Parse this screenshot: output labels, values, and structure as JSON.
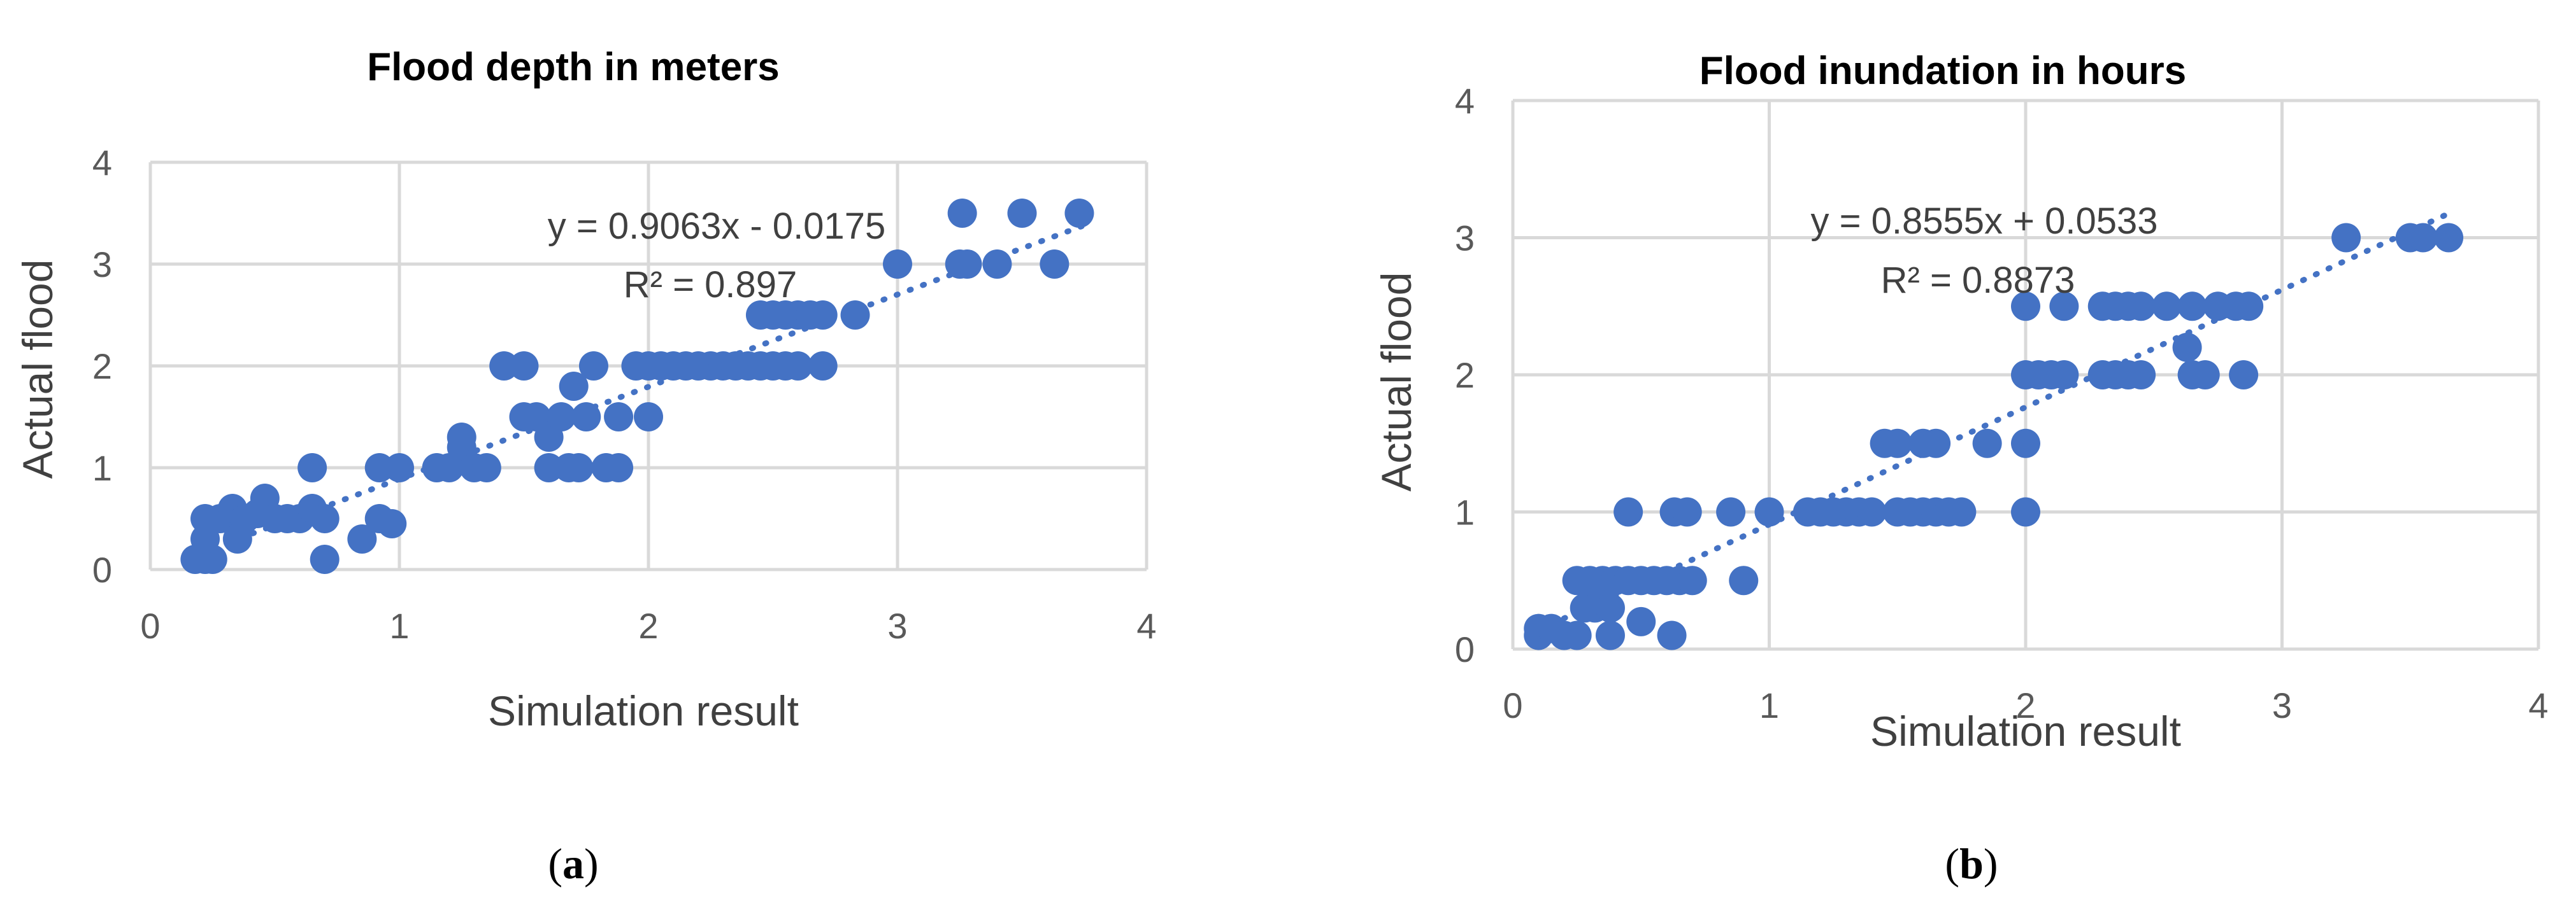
{
  "colors": {
    "marker": "#4472c4",
    "grid": "#d9d9d9",
    "axis_text": "#595959"
  },
  "chart_data": [
    {
      "type": "scatter",
      "title": "Flood depth in meters",
      "xlabel": "Simulation result",
      "ylabel": "Actual flood",
      "xlim": [
        0,
        4
      ],
      "ylim": [
        0,
        4
      ],
      "xticks": [
        "0",
        "1",
        "2",
        "3",
        "4"
      ],
      "yticks": [
        "0",
        "1",
        "2",
        "3",
        "4"
      ],
      "grid": true,
      "panel_label": "a",
      "trendline": {
        "equation": "y = 0.9063x - 0.0175",
        "r2": "R² = 0.897",
        "slope": 0.9063,
        "intercept": -0.0175,
        "x_range": [
          0.2,
          3.75
        ]
      },
      "points": [
        [
          0.18,
          0.1
        ],
        [
          0.22,
          0.1
        ],
        [
          0.25,
          0.1
        ],
        [
          0.22,
          0.3
        ],
        [
          0.22,
          0.5
        ],
        [
          0.28,
          0.5
        ],
        [
          0.33,
          0.6
        ],
        [
          0.35,
          0.3
        ],
        [
          0.38,
          0.5
        ],
        [
          0.43,
          0.55
        ],
        [
          0.46,
          0.7
        ],
        [
          0.5,
          0.5
        ],
        [
          0.55,
          0.5
        ],
        [
          0.6,
          0.5
        ],
        [
          0.65,
          0.6
        ],
        [
          0.65,
          1.0
        ],
        [
          0.7,
          0.1
        ],
        [
          0.7,
          0.5
        ],
        [
          0.85,
          0.3
        ],
        [
          0.92,
          0.5
        ],
        [
          0.92,
          1.0
        ],
        [
          0.97,
          0.45
        ],
        [
          1.0,
          1.0
        ],
        [
          1.15,
          1.0
        ],
        [
          1.2,
          1.0
        ],
        [
          1.25,
          1.2
        ],
        [
          1.25,
          1.3
        ],
        [
          1.3,
          1.0
        ],
        [
          1.35,
          1.0
        ],
        [
          1.42,
          2.0
        ],
        [
          1.5,
          2.0
        ],
        [
          1.5,
          1.5
        ],
        [
          1.55,
          1.5
        ],
        [
          1.6,
          1.0
        ],
        [
          1.6,
          1.3
        ],
        [
          1.65,
          1.5
        ],
        [
          1.68,
          1.0
        ],
        [
          1.7,
          1.8
        ],
        [
          1.72,
          1.0
        ],
        [
          1.75,
          1.5
        ],
        [
          1.78,
          2.0
        ],
        [
          1.83,
          1.0
        ],
        [
          1.88,
          1.5
        ],
        [
          1.88,
          1.0
        ],
        [
          1.95,
          2.0
        ],
        [
          2.0,
          1.5
        ],
        [
          2.0,
          2.0
        ],
        [
          2.05,
          2.0
        ],
        [
          2.1,
          2.0
        ],
        [
          2.15,
          2.0
        ],
        [
          2.2,
          2.0
        ],
        [
          2.25,
          2.0
        ],
        [
          2.3,
          2.0
        ],
        [
          2.35,
          2.0
        ],
        [
          2.4,
          2.0
        ],
        [
          2.45,
          2.0
        ],
        [
          2.5,
          2.0
        ],
        [
          2.55,
          2.0
        ],
        [
          2.6,
          2.0
        ],
        [
          2.7,
          2.0
        ],
        [
          2.45,
          2.5
        ],
        [
          2.5,
          2.5
        ],
        [
          2.55,
          2.5
        ],
        [
          2.6,
          2.5
        ],
        [
          2.65,
          2.5
        ],
        [
          2.7,
          2.5
        ],
        [
          2.83,
          2.5
        ],
        [
          3.0,
          3.0
        ],
        [
          3.25,
          3.0
        ],
        [
          3.28,
          3.0
        ],
        [
          3.4,
          3.0
        ],
        [
          3.63,
          3.0
        ],
        [
          3.26,
          3.5
        ],
        [
          3.5,
          3.5
        ],
        [
          3.73,
          3.5
        ]
      ]
    },
    {
      "type": "scatter",
      "title": "Flood inundation in hours",
      "xlabel": "Simulation result",
      "ylabel": "Actual flood",
      "xlim": [
        0,
        4
      ],
      "ylim": [
        0,
        4
      ],
      "xticks": [
        "0",
        "1",
        "2",
        "3",
        "4"
      ],
      "yticks": [
        "0",
        "1",
        "2",
        "3",
        "4"
      ],
      "grid": true,
      "panel_label": "b",
      "trendline": {
        "equation": "y = 0.8555x + 0.0533",
        "r2": "R² = 0.8873",
        "slope": 0.8555,
        "intercept": 0.0533,
        "x_range": [
          0.1,
          3.65
        ]
      },
      "points": [
        [
          0.1,
          0.1
        ],
        [
          0.1,
          0.15
        ],
        [
          0.15,
          0.15
        ],
        [
          0.2,
          0.1
        ],
        [
          0.25,
          0.1
        ],
        [
          0.28,
          0.3
        ],
        [
          0.32,
          0.3
        ],
        [
          0.35,
          0.35
        ],
        [
          0.38,
          0.3
        ],
        [
          0.38,
          0.1
        ],
        [
          0.25,
          0.5
        ],
        [
          0.3,
          0.5
        ],
        [
          0.35,
          0.5
        ],
        [
          0.4,
          0.5
        ],
        [
          0.45,
          0.5
        ],
        [
          0.5,
          0.5
        ],
        [
          0.55,
          0.5
        ],
        [
          0.6,
          0.5
        ],
        [
          0.65,
          0.5
        ],
        [
          0.7,
          0.5
        ],
        [
          0.9,
          0.5
        ],
        [
          0.5,
          0.2
        ],
        [
          0.62,
          0.1
        ],
        [
          0.45,
          1.0
        ],
        [
          0.63,
          1.0
        ],
        [
          0.68,
          1.0
        ],
        [
          0.85,
          1.0
        ],
        [
          1.0,
          1.0
        ],
        [
          1.15,
          1.0
        ],
        [
          1.2,
          1.0
        ],
        [
          1.25,
          1.0
        ],
        [
          1.3,
          1.0
        ],
        [
          1.35,
          1.0
        ],
        [
          1.4,
          1.0
        ],
        [
          1.5,
          1.0
        ],
        [
          1.55,
          1.0
        ],
        [
          1.6,
          1.0
        ],
        [
          1.65,
          1.0
        ],
        [
          1.7,
          1.0
        ],
        [
          1.75,
          1.0
        ],
        [
          2.0,
          1.0
        ],
        [
          1.45,
          1.5
        ],
        [
          1.5,
          1.5
        ],
        [
          1.6,
          1.5
        ],
        [
          1.65,
          1.5
        ],
        [
          1.85,
          1.5
        ],
        [
          2.0,
          1.5
        ],
        [
          2.0,
          2.0
        ],
        [
          2.05,
          2.0
        ],
        [
          2.1,
          2.0
        ],
        [
          2.15,
          2.0
        ],
        [
          2.3,
          2.0
        ],
        [
          2.35,
          2.0
        ],
        [
          2.4,
          2.0
        ],
        [
          2.45,
          2.0
        ],
        [
          2.63,
          2.2
        ],
        [
          2.65,
          2.0
        ],
        [
          2.7,
          2.0
        ],
        [
          2.85,
          2.0
        ],
        [
          2.0,
          2.5
        ],
        [
          2.15,
          2.5
        ],
        [
          2.3,
          2.5
        ],
        [
          2.35,
          2.5
        ],
        [
          2.4,
          2.5
        ],
        [
          2.45,
          2.5
        ],
        [
          2.55,
          2.5
        ],
        [
          2.65,
          2.5
        ],
        [
          2.75,
          2.5
        ],
        [
          2.82,
          2.5
        ],
        [
          2.87,
          2.5
        ],
        [
          3.25,
          3.0
        ],
        [
          3.5,
          3.0
        ],
        [
          3.55,
          3.0
        ],
        [
          3.65,
          3.0
        ]
      ]
    }
  ]
}
